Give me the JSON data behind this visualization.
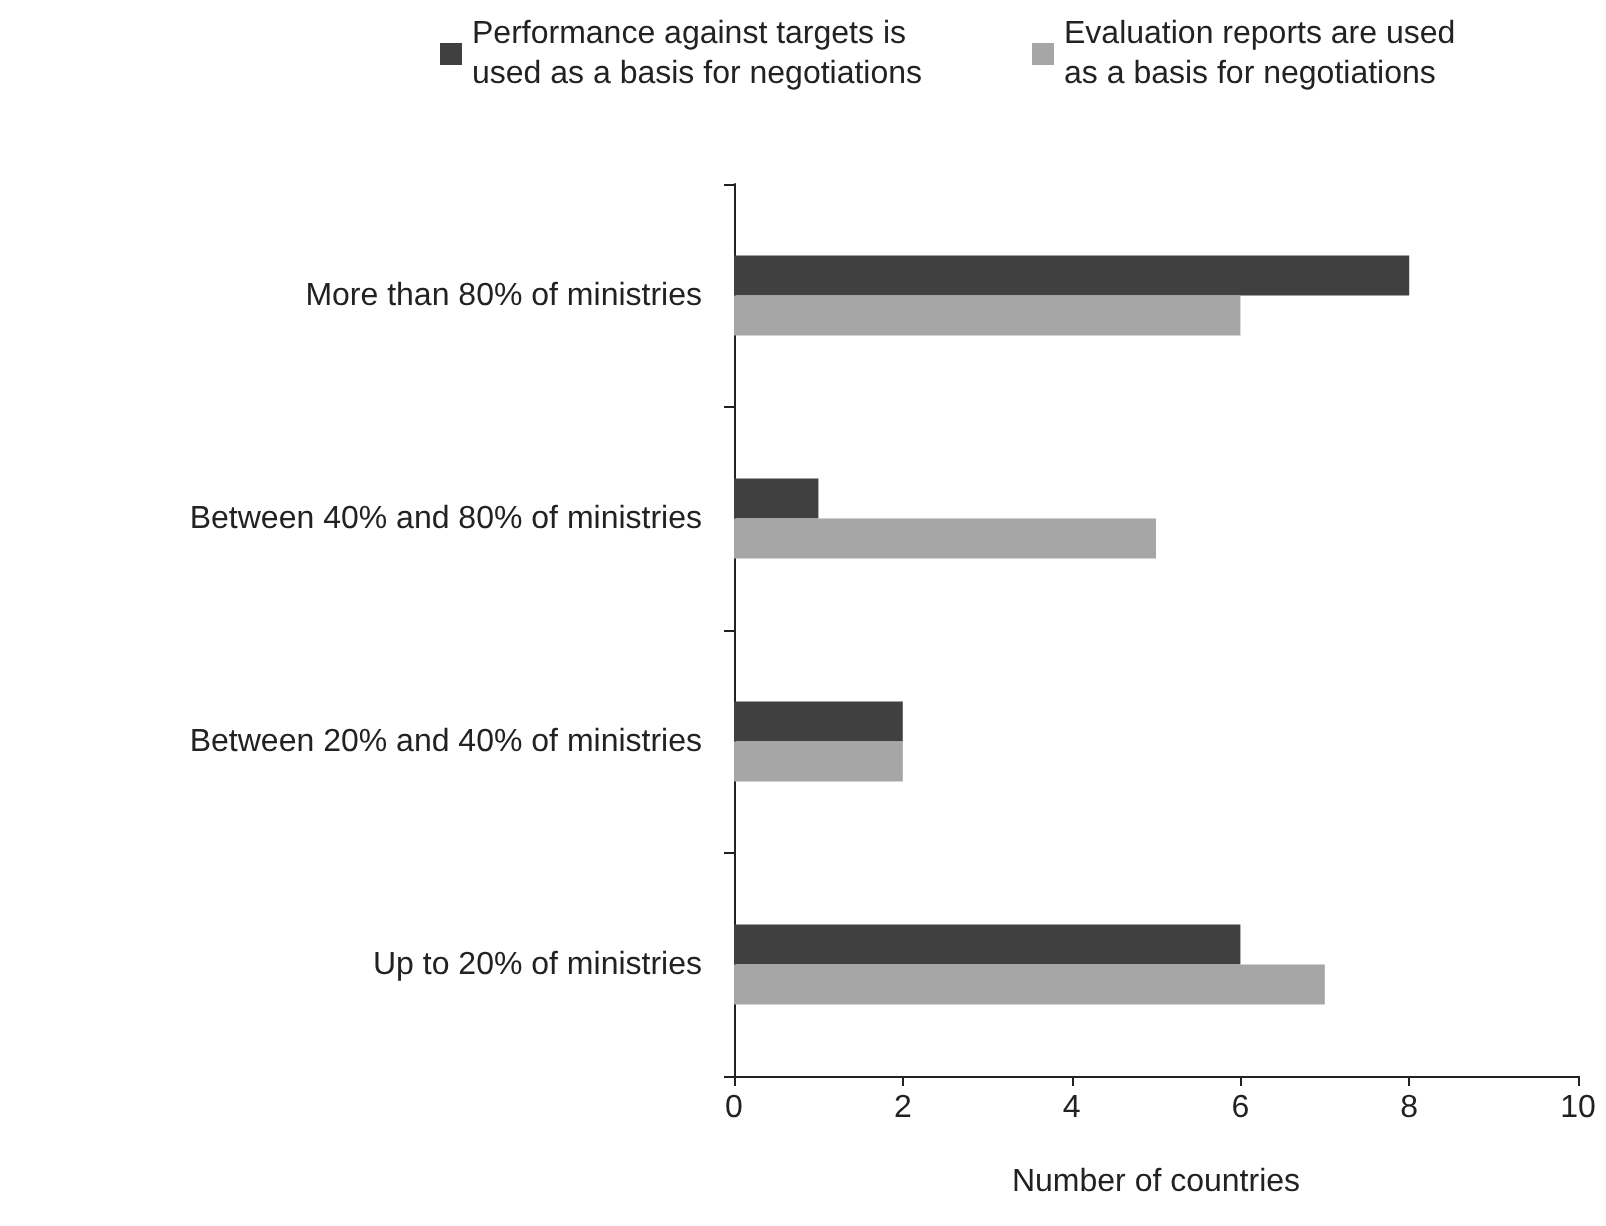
{
  "chart_data": {
    "type": "bar",
    "orientation": "horizontal",
    "xlabel": "Number of countries",
    "categories": [
      "More than 80% of ministries",
      "Between 40% and 80% of ministries",
      "Between 20% and 40% of ministries",
      "Up to 20% of ministries"
    ],
    "series": [
      {
        "name": "Performance against targets is used as a basis for negotiations",
        "color": "#404040",
        "values": [
          8,
          1,
          2,
          6
        ]
      },
      {
        "name": "Evaluation reports are used as a basis for negotiations",
        "color": "#a6a6a6",
        "values": [
          6,
          5,
          2,
          7
        ]
      }
    ],
    "xlim": [
      0,
      10
    ],
    "xticks": [
      0,
      2,
      4,
      6,
      8,
      10
    ],
    "grid": false,
    "legend": "top"
  }
}
